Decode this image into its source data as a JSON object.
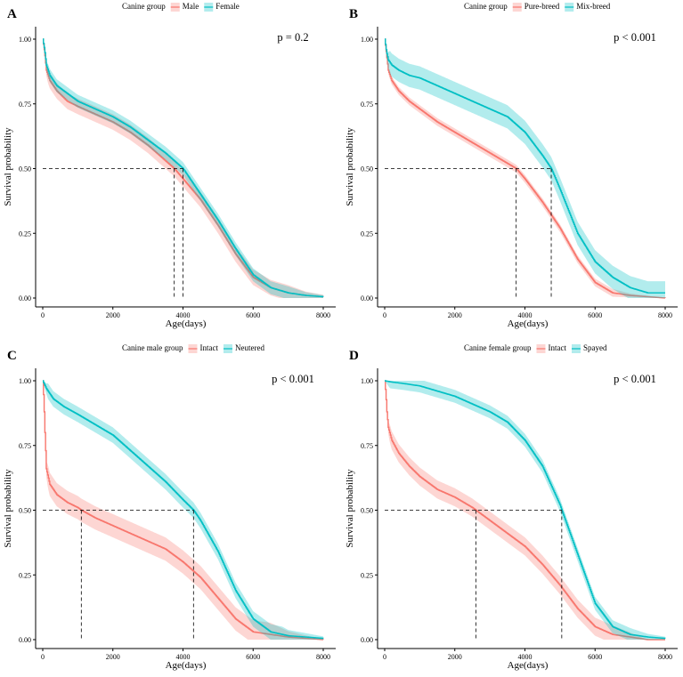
{
  "chart_data": [
    {
      "type": "line",
      "subtype": "kaplan-meier",
      "panel": "A",
      "legend_title": "Canine group",
      "xlabel": "Age(days)",
      "ylabel": "Survival probability",
      "xlim": [
        0,
        8000
      ],
      "ylim": [
        0,
        1
      ],
      "xticks": [
        "0",
        "2000",
        "4000",
        "6000",
        "8000"
      ],
      "yticks": [
        "0.00",
        "0.25",
        "0.50",
        "0.75",
        "1.00"
      ],
      "pvalue": "p = 0.2",
      "median_line_y": 0.5,
      "series": [
        {
          "name": "Male",
          "color": "#F8766D",
          "median": 3750,
          "x": [
            0,
            50,
            100,
            200,
            400,
            700,
            1000,
            1500,
            2000,
            2500,
            3000,
            3500,
            3750,
            4000,
            4500,
            5000,
            5500,
            6000,
            6500,
            7000,
            7500,
            8000
          ],
          "y": [
            1.0,
            0.95,
            0.88,
            0.84,
            0.8,
            0.76,
            0.74,
            0.71,
            0.68,
            0.64,
            0.59,
            0.53,
            0.5,
            0.46,
            0.38,
            0.28,
            0.17,
            0.08,
            0.04,
            0.02,
            0.01,
            0.005
          ],
          "ci_halfwidth": 0.03
        },
        {
          "name": "Female",
          "color": "#00BFC4",
          "median": 4000,
          "x": [
            0,
            50,
            100,
            200,
            400,
            700,
            1000,
            1500,
            2000,
            2500,
            3000,
            3500,
            4000,
            4500,
            5000,
            5500,
            6000,
            6500,
            7000,
            7500,
            8000
          ],
          "y": [
            1.0,
            0.96,
            0.9,
            0.86,
            0.82,
            0.79,
            0.76,
            0.73,
            0.7,
            0.66,
            0.61,
            0.56,
            0.5,
            0.4,
            0.3,
            0.19,
            0.09,
            0.04,
            0.02,
            0.01,
            0.005
          ],
          "ci_halfwidth": 0.025
        }
      ]
    },
    {
      "type": "line",
      "subtype": "kaplan-meier",
      "panel": "B",
      "legend_title": "Canine group",
      "xlabel": "Age(days)",
      "ylabel": "Survival probability",
      "xlim": [
        0,
        8000
      ],
      "ylim": [
        0,
        1
      ],
      "xticks": [
        "0",
        "2000",
        "4000",
        "6000",
        "8000"
      ],
      "yticks": [
        "0.00",
        "0.25",
        "0.50",
        "0.75",
        "1.00"
      ],
      "pvalue": "p < 0.001",
      "median_line_y": 0.5,
      "series": [
        {
          "name": "Pure-breed",
          "color": "#F8766D",
          "median": 3750,
          "x": [
            0,
            50,
            100,
            200,
            400,
            700,
            1000,
            1500,
            2000,
            2500,
            3000,
            3500,
            3750,
            4000,
            4500,
            5000,
            5500,
            6000,
            6500,
            7000,
            7500,
            8000
          ],
          "y": [
            1.0,
            0.94,
            0.88,
            0.84,
            0.8,
            0.76,
            0.73,
            0.68,
            0.64,
            0.6,
            0.56,
            0.52,
            0.5,
            0.46,
            0.37,
            0.27,
            0.15,
            0.06,
            0.02,
            0.01,
            0.005,
            0.0
          ],
          "ci_halfwidth": 0.015
        },
        {
          "name": "Mix-breed",
          "color": "#00BFC4",
          "median": 4750,
          "x": [
            0,
            50,
            100,
            200,
            400,
            700,
            1000,
            1500,
            2000,
            2500,
            3000,
            3500,
            4000,
            4500,
            4750,
            5000,
            5500,
            6000,
            6500,
            7000,
            7500,
            8000
          ],
          "y": [
            1.0,
            0.95,
            0.92,
            0.9,
            0.88,
            0.86,
            0.85,
            0.82,
            0.79,
            0.76,
            0.73,
            0.7,
            0.64,
            0.55,
            0.5,
            0.42,
            0.25,
            0.14,
            0.08,
            0.04,
            0.02,
            0.02
          ],
          "ci_halfwidth": 0.045
        }
      ]
    },
    {
      "type": "line",
      "subtype": "kaplan-meier",
      "panel": "C",
      "legend_title": "Canine male group",
      "xlabel": "Age(days)",
      "ylabel": "Survival probability",
      "xlim": [
        0,
        8000
      ],
      "ylim": [
        0,
        1
      ],
      "xticks": [
        "0",
        "2000",
        "4000",
        "6000",
        "8000"
      ],
      "yticks": [
        "0.00",
        "0.25",
        "0.50",
        "0.75",
        "1.00"
      ],
      "pvalue": "p < 0.001",
      "median_line_y": 0.5,
      "series": [
        {
          "name": "Intact",
          "color": "#F8766D",
          "median": 1100,
          "x": [
            0,
            30,
            60,
            100,
            200,
            400,
            700,
            1000,
            1100,
            1500,
            2000,
            2500,
            3000,
            3500,
            4000,
            4500,
            5000,
            5500,
            6000,
            6500,
            7000,
            7500,
            8000
          ],
          "y": [
            1.0,
            0.92,
            0.8,
            0.66,
            0.6,
            0.56,
            0.53,
            0.51,
            0.5,
            0.47,
            0.44,
            0.41,
            0.38,
            0.35,
            0.3,
            0.24,
            0.16,
            0.08,
            0.03,
            0.02,
            0.01,
            0.005,
            0.0
          ],
          "ci_halfwidth": 0.045
        },
        {
          "name": "Neutered",
          "color": "#00BFC4",
          "median": 4300,
          "x": [
            0,
            100,
            300,
            600,
            1000,
            1500,
            2000,
            2500,
            3000,
            3500,
            4000,
            4300,
            4500,
            5000,
            5500,
            6000,
            6500,
            7000,
            7500,
            8000
          ],
          "y": [
            1.0,
            0.97,
            0.93,
            0.9,
            0.87,
            0.83,
            0.79,
            0.73,
            0.67,
            0.61,
            0.54,
            0.5,
            0.46,
            0.34,
            0.19,
            0.08,
            0.03,
            0.015,
            0.01,
            0.005
          ],
          "ci_halfwidth": 0.03
        }
      ]
    },
    {
      "type": "line",
      "subtype": "kaplan-meier",
      "panel": "D",
      "legend_title": "Canine female group",
      "xlabel": "Age(days)",
      "ylabel": "Survival probability",
      "xlim": [
        0,
        8000
      ],
      "ylim": [
        0,
        1
      ],
      "xticks": [
        "0",
        "2000",
        "4000",
        "6000",
        "8000"
      ],
      "yticks": [
        "0.00",
        "0.25",
        "0.50",
        "0.75",
        "1.00"
      ],
      "pvalue": "p < 0.001",
      "median_line_y": 0.5,
      "series": [
        {
          "name": "Intact",
          "color": "#F8766D",
          "median": 2600,
          "x": [
            0,
            30,
            60,
            100,
            200,
            400,
            700,
            1000,
            1500,
            2000,
            2500,
            2600,
            3000,
            3500,
            4000,
            4500,
            5000,
            5500,
            6000,
            6500,
            7000,
            7500,
            8000
          ],
          "y": [
            1.0,
            0.95,
            0.88,
            0.82,
            0.77,
            0.72,
            0.67,
            0.63,
            0.58,
            0.55,
            0.51,
            0.5,
            0.46,
            0.41,
            0.36,
            0.29,
            0.21,
            0.12,
            0.05,
            0.02,
            0.01,
            0.0,
            0.0
          ],
          "ci_halfwidth": 0.035
        },
        {
          "name": "Spayed",
          "color": "#00BFC4",
          "median": 5050,
          "x": [
            0,
            200,
            500,
            1000,
            1500,
            2000,
            2500,
            3000,
            3500,
            4000,
            4500,
            5000,
            5050,
            5500,
            6000,
            6500,
            7000,
            7500,
            8000
          ],
          "y": [
            1.0,
            0.995,
            0.99,
            0.98,
            0.96,
            0.94,
            0.91,
            0.88,
            0.84,
            0.77,
            0.67,
            0.52,
            0.5,
            0.33,
            0.14,
            0.05,
            0.02,
            0.01,
            0.005
          ],
          "ci_halfwidth": 0.025
        }
      ]
    }
  ]
}
